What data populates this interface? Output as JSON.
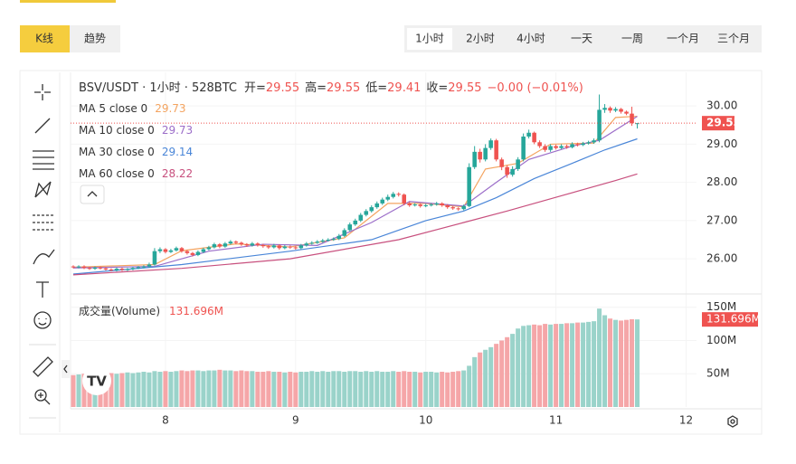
{
  "ui": {
    "chart_tabs": [
      "K线",
      "趋势"
    ],
    "intervals": [
      "1小时",
      "2小时",
      "4小时",
      "一天",
      "一周",
      "一个月",
      "三个月"
    ],
    "active_interval": 0
  },
  "chart_data": {
    "type": "candlestick",
    "title": "BSV/USDT · 1小时 · 528BTC",
    "ohlc_labels": [
      "开=",
      "高=",
      "低=",
      "收="
    ],
    "change": "−0.00 (−0.01%)",
    "up_color": "#26a69a",
    "down_color": "#ef5350",
    "xlim": [
      -0.5,
      113.5
    ],
    "xticks": [
      {
        "value": 17,
        "label": "8"
      },
      {
        "value": 41,
        "label": "9"
      },
      {
        "value": 65,
        "label": "10"
      },
      {
        "value": 89,
        "label": "11"
      },
      {
        "value": 113,
        "label": "12"
      }
    ],
    "ylim": [
      25.08,
      30.88
    ],
    "yticks": [
      {
        "value": 26,
        "label": "26.00"
      },
      {
        "value": 27,
        "label": "27.00"
      },
      {
        "value": 28,
        "label": "28.00"
      },
      {
        "value": 29,
        "label": "29.00"
      },
      {
        "value": 30,
        "label": "30.00"
      }
    ],
    "grid": true,
    "candles": [
      [
        25.8,
        25.83,
        25.75,
        25.78
      ],
      [
        25.78,
        25.83,
        25.75,
        25.8
      ],
      [
        25.8,
        25.83,
        25.73,
        25.76
      ],
      [
        25.76,
        25.79,
        25.71,
        25.74
      ],
      [
        25.74,
        25.8,
        25.71,
        25.77
      ],
      [
        25.77,
        25.8,
        25.72,
        25.75
      ],
      [
        25.75,
        25.78,
        25.69,
        25.72
      ],
      [
        25.72,
        25.75,
        25.67,
        25.7
      ],
      [
        25.7,
        25.77,
        25.67,
        25.74
      ],
      [
        25.74,
        25.77,
        25.68,
        25.71
      ],
      [
        25.71,
        25.76,
        25.68,
        25.73
      ],
      [
        25.73,
        25.79,
        25.7,
        25.76
      ],
      [
        25.76,
        25.81,
        25.73,
        25.78
      ],
      [
        25.78,
        25.83,
        25.75,
        25.8
      ],
      [
        25.8,
        25.9,
        25.77,
        25.85
      ],
      [
        25.85,
        26.28,
        25.82,
        26.2
      ],
      [
        26.2,
        26.3,
        26.15,
        26.25
      ],
      [
        26.25,
        26.28,
        26.14,
        26.18
      ],
      [
        26.18,
        26.26,
        26.15,
        26.22
      ],
      [
        26.22,
        26.32,
        26.19,
        26.28
      ],
      [
        26.28,
        26.31,
        26.16,
        26.2
      ],
      [
        26.2,
        26.23,
        26.11,
        26.15
      ],
      [
        26.15,
        26.18,
        26.06,
        26.1
      ],
      [
        26.1,
        26.22,
        26.07,
        26.18
      ],
      [
        26.18,
        26.29,
        26.15,
        26.25
      ],
      [
        26.25,
        26.34,
        26.22,
        26.3
      ],
      [
        26.3,
        26.42,
        26.27,
        26.38
      ],
      [
        26.38,
        26.41,
        26.28,
        26.32
      ],
      [
        26.32,
        26.44,
        26.29,
        26.4
      ],
      [
        26.4,
        26.49,
        26.37,
        26.45
      ],
      [
        26.45,
        26.48,
        26.38,
        26.42
      ],
      [
        26.42,
        26.45,
        26.34,
        26.38
      ],
      [
        26.38,
        26.41,
        26.31,
        26.35
      ],
      [
        26.35,
        26.44,
        26.32,
        26.4
      ],
      [
        26.4,
        26.43,
        26.32,
        26.36
      ],
      [
        26.36,
        26.39,
        26.29,
        26.33
      ],
      [
        26.33,
        26.36,
        26.26,
        26.3
      ],
      [
        26.3,
        26.39,
        26.27,
        26.35
      ],
      [
        26.35,
        26.38,
        26.24,
        26.28
      ],
      [
        26.28,
        26.36,
        26.25,
        26.32
      ],
      [
        26.32,
        26.35,
        26.26,
        26.3
      ],
      [
        26.3,
        26.33,
        26.24,
        26.28
      ],
      [
        26.28,
        26.39,
        26.25,
        26.35
      ],
      [
        26.35,
        26.44,
        26.32,
        26.4
      ],
      [
        26.4,
        26.46,
        26.37,
        26.42
      ],
      [
        26.42,
        26.49,
        26.39,
        26.45
      ],
      [
        26.45,
        26.52,
        26.42,
        26.48
      ],
      [
        26.48,
        26.54,
        26.45,
        26.5
      ],
      [
        26.5,
        26.56,
        26.47,
        26.52
      ],
      [
        26.52,
        26.65,
        26.49,
        26.6
      ],
      [
        26.6,
        26.8,
        26.57,
        26.75
      ],
      [
        26.75,
        26.95,
        26.72,
        26.9
      ],
      [
        26.9,
        27.05,
        26.86,
        27.0
      ],
      [
        27.0,
        27.2,
        26.96,
        27.15
      ],
      [
        27.15,
        27.3,
        27.11,
        27.25
      ],
      [
        27.25,
        27.4,
        27.21,
        27.35
      ],
      [
        27.35,
        27.5,
        27.31,
        27.45
      ],
      [
        27.45,
        27.6,
        27.41,
        27.55
      ],
      [
        27.55,
        27.68,
        27.51,
        27.62
      ],
      [
        27.62,
        27.75,
        27.58,
        27.7
      ],
      [
        27.7,
        27.74,
        27.63,
        27.68
      ],
      [
        27.68,
        27.71,
        27.4,
        27.45
      ],
      [
        27.45,
        27.49,
        27.36,
        27.4
      ],
      [
        27.4,
        27.46,
        27.37,
        27.42
      ],
      [
        27.42,
        27.45,
        27.34,
        27.38
      ],
      [
        27.38,
        27.44,
        27.35,
        27.4
      ],
      [
        27.4,
        27.46,
        27.37,
        27.42
      ],
      [
        27.42,
        27.49,
        27.39,
        27.45
      ],
      [
        27.45,
        27.48,
        27.36,
        27.4
      ],
      [
        27.4,
        27.43,
        27.31,
        27.35
      ],
      [
        27.35,
        27.38,
        27.28,
        27.32
      ],
      [
        27.32,
        27.35,
        27.26,
        27.3
      ],
      [
        27.3,
        27.42,
        27.27,
        27.38
      ],
      [
        27.38,
        28.5,
        27.35,
        28.4
      ],
      [
        28.4,
        28.95,
        28.35,
        28.8
      ],
      [
        28.8,
        28.88,
        28.52,
        28.6
      ],
      [
        28.6,
        29.0,
        28.55,
        28.9
      ],
      [
        28.9,
        29.15,
        28.85,
        29.1
      ],
      [
        29.1,
        29.14,
        28.55,
        28.6
      ],
      [
        28.6,
        28.65,
        28.32,
        28.4
      ],
      [
        28.4,
        28.45,
        28.12,
        28.2
      ],
      [
        28.2,
        28.42,
        28.15,
        28.35
      ],
      [
        28.35,
        28.66,
        28.3,
        28.6
      ],
      [
        28.6,
        29.28,
        28.55,
        29.2
      ],
      [
        29.2,
        29.38,
        29.15,
        29.3
      ],
      [
        29.3,
        29.33,
        29.0,
        29.05
      ],
      [
        29.05,
        29.1,
        28.9,
        28.95
      ],
      [
        28.95,
        29.0,
        28.8,
        28.85
      ],
      [
        28.85,
        29.0,
        28.8,
        28.95
      ],
      [
        28.95,
        28.99,
        28.86,
        28.9
      ],
      [
        28.9,
        29.0,
        28.87,
        28.95
      ],
      [
        28.95,
        28.99,
        28.88,
        28.92
      ],
      [
        28.92,
        29.05,
        28.89,
        29.0
      ],
      [
        29.0,
        29.04,
        28.94,
        28.98
      ],
      [
        28.98,
        29.06,
        28.95,
        29.02
      ],
      [
        29.02,
        29.09,
        28.99,
        29.05
      ],
      [
        29.05,
        29.15,
        29.01,
        29.1
      ],
      [
        29.1,
        30.3,
        29.05,
        29.9
      ],
      [
        29.9,
        30.05,
        29.82,
        29.95
      ],
      [
        29.95,
        29.99,
        29.82,
        29.88
      ],
      [
        29.88,
        29.97,
        29.84,
        29.92
      ],
      [
        29.92,
        29.95,
        29.8,
        29.85
      ],
      [
        29.85,
        29.88,
        29.76,
        29.8
      ],
      [
        29.8,
        29.98,
        29.48,
        29.55
      ],
      [
        29.55,
        29.55,
        29.41,
        29.55
      ]
    ],
    "ma": [
      {
        "name": "MA 5 close 0",
        "color": "#f4a460",
        "x": [
          0,
          15,
          20,
          30,
          40,
          50,
          58,
          65,
          72,
          76,
          82,
          88,
          96,
          100,
          104
        ],
        "values": [
          25.78,
          25.85,
          26.21,
          26.39,
          26.31,
          26.55,
          27.45,
          27.45,
          27.36,
          28.35,
          28.5,
          29.0,
          29.03,
          29.7,
          29.73
        ]
      },
      {
        "name": "MA 10 close 0",
        "color": "#9c6ec9",
        "x": [
          0,
          15,
          25,
          35,
          45,
          55,
          62,
          72,
          78,
          84,
          92,
          97,
          104
        ],
        "values": [
          25.76,
          25.8,
          26.2,
          26.38,
          26.35,
          26.95,
          27.5,
          27.38,
          28.0,
          28.6,
          28.95,
          29.1,
          29.73
        ]
      },
      {
        "name": "MA 30 close 0",
        "color": "#4a86d8",
        "x": [
          0,
          20,
          40,
          55,
          65,
          72,
          78,
          85,
          92,
          98,
          104
        ],
        "values": [
          25.6,
          25.85,
          26.2,
          26.5,
          27.0,
          27.25,
          27.6,
          28.1,
          28.5,
          28.85,
          29.14
        ]
      },
      {
        "name": "MA 60 close 0",
        "color": "#c8507e",
        "x": [
          0,
          20,
          40,
          60,
          72,
          80,
          90,
          100,
          104
        ],
        "values": [
          25.58,
          25.75,
          26.0,
          26.5,
          26.95,
          27.25,
          27.65,
          28.05,
          28.22
        ]
      }
    ],
    "volume": {
      "name": "成交量(Volume)",
      "ylim": [
        0,
        170
      ],
      "yticks": [
        {
          "value": 50,
          "label": "50M"
        },
        {
          "value": 100,
          "label": "100M"
        },
        {
          "value": 150,
          "label": "150M"
        }
      ],
      "up_color": "#9ad3ca",
      "down_color": "#f5a6a8",
      "values": [
        48,
        49,
        50,
        50,
        51,
        50,
        52,
        51,
        50,
        51,
        52,
        51,
        52,
        53,
        52,
        54,
        53,
        54,
        53,
        54,
        55,
        54,
        55,
        55,
        54,
        55,
        55,
        56,
        55,
        55,
        54,
        55,
        54,
        54,
        53,
        53,
        54,
        53,
        53,
        52,
        53,
        52,
        53,
        53,
        54,
        53,
        54,
        53,
        54,
        54,
        53,
        54,
        54,
        53,
        54,
        53,
        54,
        53,
        53,
        54,
        53,
        54,
        53,
        53,
        52,
        53,
        53,
        52,
        53,
        52,
        53,
        54,
        55,
        62,
        75,
        82,
        86,
        90,
        95,
        100,
        105,
        110,
        118,
        122,
        123,
        124,
        123,
        125,
        124,
        125,
        125,
        126,
        126,
        127,
        127,
        128,
        129,
        148,
        138,
        133,
        131,
        130,
        131,
        132,
        131.696
      ],
      "value_labels": {
        "104": "131.696M"
      }
    }
  }
}
